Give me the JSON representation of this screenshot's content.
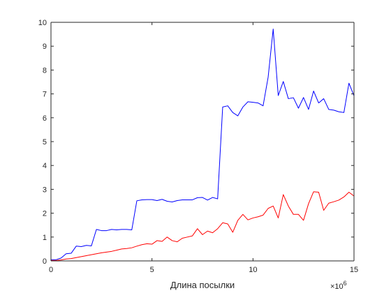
{
  "chart_data": {
    "type": "line",
    "title": "",
    "xlabel": "Длина посылки",
    "ylabel": "",
    "x_exponent_label": "×10",
    "x_exponent_power": "6",
    "xlim": [
      0,
      15
    ],
    "ylim": [
      0,
      10
    ],
    "x_ticks": [
      "0",
      "5",
      "10",
      "15"
    ],
    "y_ticks": [
      "0",
      "1",
      "2",
      "3",
      "4",
      "5",
      "6",
      "7",
      "8",
      "9",
      "10"
    ],
    "grid": false,
    "legend": "none",
    "series": [
      {
        "color": "#0000ff",
        "x": [
          0,
          0.25,
          0.5,
          0.75,
          1.0,
          1.25,
          1.5,
          1.75,
          2.0,
          2.25,
          2.5,
          2.75,
          3.0,
          3.25,
          3.5,
          3.75,
          4.0,
          4.25,
          4.5,
          4.75,
          5.0,
          5.25,
          5.5,
          5.75,
          6.0,
          6.25,
          6.5,
          6.75,
          7.0,
          7.25,
          7.5,
          7.75,
          8.0,
          8.25,
          8.5,
          8.75,
          9.0,
          9.25,
          9.5,
          9.75,
          10.0,
          10.25,
          10.5,
          10.75,
          11.0,
          11.25,
          11.5,
          11.75,
          12.0,
          12.25,
          12.5,
          12.75,
          13.0,
          13.25,
          13.5,
          13.75,
          14.0,
          14.25,
          14.5,
          14.75,
          15.0
        ],
        "y": [
          0.05,
          0.05,
          0.12,
          0.3,
          0.32,
          0.62,
          0.6,
          0.65,
          0.63,
          1.32,
          1.27,
          1.27,
          1.32,
          1.3,
          1.32,
          1.32,
          1.3,
          2.52,
          2.56,
          2.57,
          2.57,
          2.53,
          2.58,
          2.5,
          2.47,
          2.53,
          2.56,
          2.56,
          2.56,
          2.65,
          2.66,
          2.55,
          2.66,
          2.6,
          6.45,
          6.5,
          6.22,
          6.08,
          6.45,
          6.67,
          6.65,
          6.62,
          6.5,
          7.7,
          9.72,
          6.93,
          7.52,
          6.8,
          6.84,
          6.4,
          6.85,
          6.35,
          7.12,
          6.62,
          6.8,
          6.35,
          6.32,
          6.25,
          6.22,
          7.45,
          6.92
        ]
      },
      {
        "color": "#ff0000",
        "x": [
          0,
          0.25,
          0.5,
          0.75,
          1.0,
          1.25,
          1.5,
          1.75,
          2.0,
          2.25,
          2.5,
          2.75,
          3.0,
          3.25,
          3.5,
          3.75,
          4.0,
          4.25,
          4.5,
          4.75,
          5.0,
          5.25,
          5.5,
          5.75,
          6.0,
          6.25,
          6.5,
          6.75,
          7.0,
          7.25,
          7.5,
          7.75,
          8.0,
          8.25,
          8.5,
          8.75,
          9.0,
          9.25,
          9.5,
          9.75,
          10.0,
          10.25,
          10.5,
          10.75,
          11.0,
          11.25,
          11.5,
          11.75,
          12.0,
          12.25,
          12.5,
          12.75,
          13.0,
          13.25,
          13.5,
          13.75,
          14.0,
          14.25,
          14.5,
          14.75,
          15.0
        ],
        "y": [
          0.02,
          0.02,
          0.04,
          0.08,
          0.1,
          0.14,
          0.18,
          0.22,
          0.26,
          0.3,
          0.34,
          0.37,
          0.4,
          0.45,
          0.5,
          0.52,
          0.55,
          0.62,
          0.68,
          0.72,
          0.7,
          0.85,
          0.82,
          1.0,
          0.85,
          0.8,
          0.95,
          1.0,
          1.05,
          1.35,
          1.1,
          1.25,
          1.18,
          1.35,
          1.6,
          1.55,
          1.2,
          1.7,
          1.95,
          1.72,
          1.8,
          1.85,
          1.92,
          2.2,
          2.3,
          1.8,
          2.78,
          2.3,
          1.95,
          1.95,
          1.7,
          2.4,
          2.9,
          2.88,
          2.12,
          2.42,
          2.48,
          2.55,
          2.68,
          2.88,
          2.72
        ]
      }
    ]
  }
}
